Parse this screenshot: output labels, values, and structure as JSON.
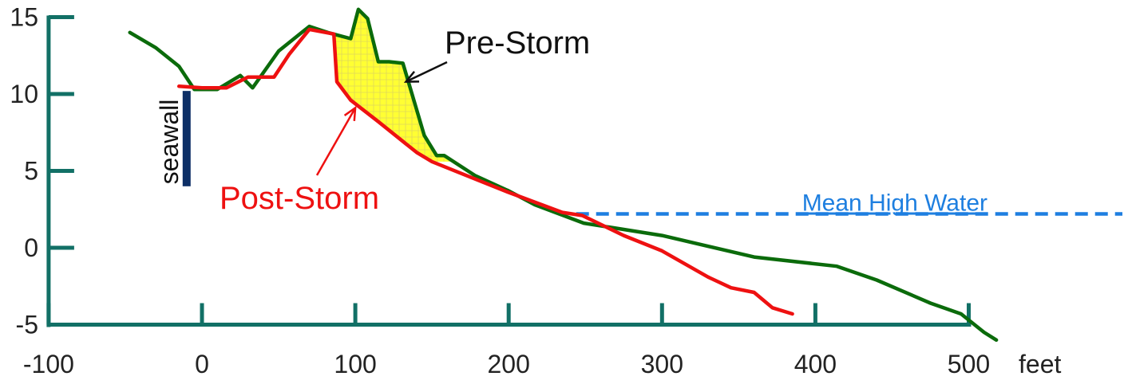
{
  "chart_data": {
    "type": "line",
    "title": "",
    "xlabel": "",
    "ylabel": "",
    "x_unit_label": "feet",
    "xlim": [
      -100,
      500
    ],
    "ylim": [
      -5,
      15
    ],
    "x_ticks": [
      -100,
      0,
      100,
      200,
      300,
      400,
      500
    ],
    "y_ticks": [
      -5,
      0,
      5,
      10,
      15
    ],
    "grid": false,
    "legend": "none",
    "series": [
      {
        "key": "pre",
        "name": "Pre-Storm",
        "color": "#0b6b0b",
        "points": [
          [
            -47,
            14.0
          ],
          [
            -30,
            13.0
          ],
          [
            -15,
            11.8
          ],
          [
            -5,
            10.3
          ],
          [
            10,
            10.3
          ],
          [
            25,
            11.2
          ],
          [
            33,
            10.4
          ],
          [
            50,
            12.8
          ],
          [
            70,
            14.4
          ],
          [
            82,
            14.0
          ],
          [
            97,
            13.6
          ],
          [
            102,
            15.5
          ],
          [
            108,
            14.9
          ],
          [
            115,
            12.1
          ],
          [
            122,
            12.1
          ],
          [
            131,
            12.0
          ],
          [
            145,
            7.3
          ],
          [
            153,
            6.0
          ],
          [
            158,
            6.0
          ],
          [
            178,
            4.7
          ],
          [
            200,
            3.7
          ],
          [
            217,
            2.8
          ],
          [
            249,
            1.6
          ],
          [
            300,
            0.8
          ],
          [
            360,
            -0.6
          ],
          [
            414,
            -1.2
          ],
          [
            440,
            -2.1
          ],
          [
            475,
            -3.6
          ],
          [
            495,
            -4.3
          ],
          [
            510,
            -5.5
          ],
          [
            518,
            -6.0
          ]
        ]
      },
      {
        "key": "post",
        "name": "Post-Storm",
        "color": "#ee1111",
        "points": [
          [
            -15,
            10.5
          ],
          [
            0,
            10.4
          ],
          [
            16,
            10.4
          ],
          [
            30,
            11.1
          ],
          [
            47,
            11.1
          ],
          [
            57,
            12.6
          ],
          [
            70,
            14.2
          ],
          [
            86,
            13.9
          ],
          [
            88,
            10.8
          ],
          [
            97,
            9.6
          ],
          [
            115,
            8.2
          ],
          [
            140,
            6.2
          ],
          [
            150,
            5.6
          ],
          [
            170,
            4.8
          ],
          [
            200,
            3.6
          ],
          [
            235,
            2.3
          ],
          [
            248,
            2.1
          ],
          [
            275,
            0.8
          ],
          [
            300,
            -0.2
          ],
          [
            330,
            -1.9
          ],
          [
            345,
            -2.6
          ],
          [
            360,
            -2.9
          ],
          [
            372,
            -3.9
          ],
          [
            385,
            -4.3
          ]
        ]
      }
    ],
    "erosion_area_vertices": [
      [
        86,
        13.9
      ],
      [
        97,
        13.6
      ],
      [
        102,
        15.5
      ],
      [
        108,
        14.9
      ],
      [
        115,
        12.1
      ],
      [
        122,
        12.1
      ],
      [
        131,
        12.0
      ],
      [
        145,
        7.3
      ],
      [
        153,
        6.0
      ],
      [
        158,
        6.0
      ],
      [
        163,
        5.6
      ],
      [
        150,
        5.6
      ],
      [
        140,
        6.2
      ],
      [
        115,
        8.2
      ],
      [
        97,
        9.6
      ],
      [
        88,
        10.8
      ]
    ],
    "mean_high_water": {
      "label": "Mean High Water",
      "y": 2.2,
      "x_start": 244,
      "color": "#1e7fe0"
    },
    "seawall": {
      "label": "seawall",
      "x": -10,
      "y_top": 10.2,
      "y_bottom": 4.0,
      "color": "#0d2f66"
    },
    "annotations": {
      "pre_storm": {
        "text": "Pre-Storm",
        "color": "#111111",
        "point_at": [
          133,
          10.8
        ]
      },
      "post_storm": {
        "text": "Post-Storm",
        "color": "#ee1111",
        "point_at": [
          100,
          9.1
        ]
      }
    },
    "colors": {
      "axis": "#127066",
      "erosion_fill": "#ffff33",
      "erosion_hatch": "#e0d85a"
    }
  }
}
